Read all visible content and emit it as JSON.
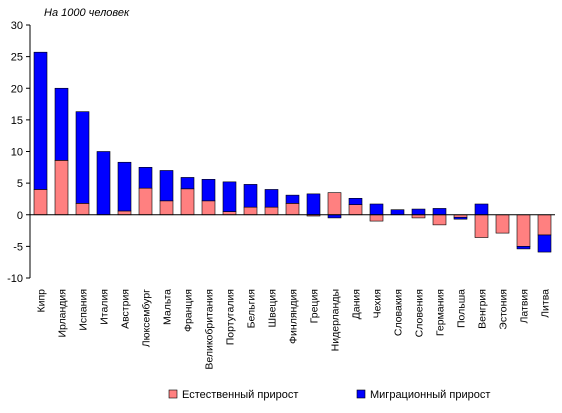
{
  "chart_data": {
    "type": "bar",
    "stacked": true,
    "unit_label": "На 1000 человек",
    "ylim": [
      -10,
      30
    ],
    "y_ticks": [
      30,
      25,
      20,
      15,
      10,
      5,
      0,
      -5,
      -10
    ],
    "grid": false,
    "legend_position": "bottom",
    "categories": [
      "Кипр",
      "Ирландия",
      "Испания",
      "Италия",
      "Австрия",
      "Люксембург",
      "Мальта",
      "Франция",
      "Великобритания",
      "Португалия",
      "Бельгия",
      "Швеция",
      "Финляндия",
      "Греция",
      "Нидерланды",
      "Дания",
      "Чехия",
      "Словакия",
      "Словения",
      "Германия",
      "Польша",
      "Венгрия",
      "Эстония",
      "Латвия",
      "Литва"
    ],
    "series": [
      {
        "name": "Естественный прирост",
        "color": "#ff8080",
        "values": [
          4.0,
          8.6,
          1.8,
          0.0,
          0.6,
          4.2,
          2.2,
          4.1,
          2.2,
          0.5,
          1.2,
          1.2,
          1.8,
          -0.2,
          3.5,
          1.6,
          -1.0,
          0.0,
          -0.5,
          -1.6,
          -0.4,
          -3.6,
          -2.9,
          -5.0,
          -3.2
        ]
      },
      {
        "name": "Миграционный прирост",
        "color": "#0000ff",
        "values": [
          21.7,
          11.4,
          14.5,
          10.0,
          7.7,
          3.3,
          4.8,
          1.8,
          3.4,
          4.7,
          3.6,
          2.8,
          1.3,
          3.3,
          -0.5,
          1.0,
          1.7,
          0.8,
          0.9,
          1.0,
          -0.3,
          1.7,
          0.0,
          -0.4,
          -2.7
        ]
      }
    ]
  }
}
